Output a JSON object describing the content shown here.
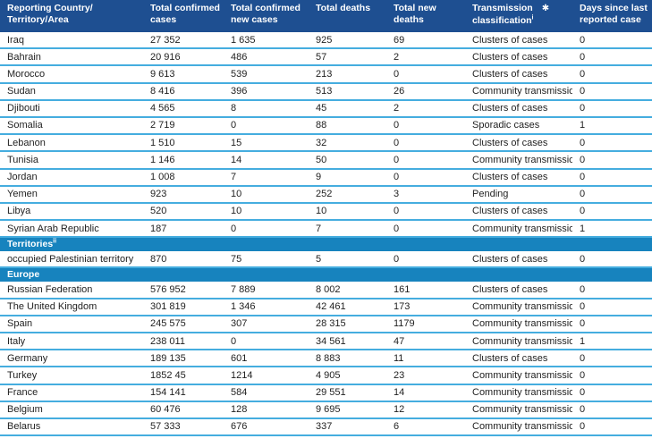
{
  "header": {
    "col_country": "Reporting Country/ Territory/Area",
    "col_confirmed_line1": "Total confirmed",
    "col_confirmed_line2": "cases",
    "col_new_cases_line1": "Total confirmed",
    "col_new_cases_line2": "new cases",
    "col_deaths": "Total deaths",
    "col_new_deaths": "Total new deaths",
    "col_transmission_line1": "Transmission",
    "col_transmission_star": "✱",
    "col_transmission_line2": "classification",
    "col_transmission_sup": "i",
    "col_days_line1": "Days since last",
    "col_days_line2": "reported case"
  },
  "colors": {
    "header_bg": "#1E4F91",
    "section_bg": "#1783BE",
    "row_border": "#45ADDF",
    "header_text": "#ffffff",
    "body_text": "#1f1f1f"
  },
  "table": {
    "rows": [
      {
        "type": "data",
        "cells": [
          "Iraq",
          "27 352",
          "1 635",
          "925",
          "69",
          "Clusters of cases",
          "0"
        ]
      },
      {
        "type": "data",
        "cells": [
          "Bahrain",
          "20 916",
          "486",
          "57",
          "2",
          "Clusters of cases",
          "0"
        ]
      },
      {
        "type": "data",
        "cells": [
          "Morocco",
          "9 613",
          "539",
          "213",
          "0",
          "Clusters of cases",
          "0"
        ]
      },
      {
        "type": "data",
        "cells": [
          "Sudan",
          "8 416",
          "396",
          "513",
          "26",
          "Community transmission",
          "0"
        ]
      },
      {
        "type": "data",
        "cells": [
          "Djibouti",
          "4 565",
          "8",
          "45",
          "2",
          "Clusters of cases",
          "0"
        ]
      },
      {
        "type": "data",
        "cells": [
          "Somalia",
          "2 719",
          "0",
          "88",
          "0",
          "Sporadic cases",
          "1"
        ]
      },
      {
        "type": "data",
        "cells": [
          "Lebanon",
          "1 510",
          "15",
          "32",
          "0",
          "Clusters of cases",
          "0"
        ]
      },
      {
        "type": "data",
        "cells": [
          "Tunisia",
          "1 146",
          "14",
          "50",
          "0",
          "Community transmission",
          "0"
        ]
      },
      {
        "type": "data",
        "cells": [
          "Jordan",
          "1 008",
          "7",
          "9",
          "0",
          "Clusters of cases",
          "0"
        ]
      },
      {
        "type": "data",
        "cells": [
          "Yemen",
          "923",
          "10",
          "252",
          "3",
          "Pending",
          "0"
        ]
      },
      {
        "type": "data",
        "cells": [
          "Libya",
          "520",
          "10",
          "10",
          "0",
          "Clusters of cases",
          "0"
        ]
      },
      {
        "type": "data",
        "cells": [
          "Syrian Arab Republic",
          "187",
          "0",
          "7",
          "0",
          "Community transmission",
          "1"
        ]
      },
      {
        "type": "section",
        "label": "Territories",
        "sup": "ii"
      },
      {
        "type": "data",
        "cells": [
          "occupied Palestinian territory",
          "870",
          "75",
          "5",
          "0",
          "Clusters of cases",
          "0"
        ]
      },
      {
        "type": "section",
        "label": "Europe",
        "sup": ""
      },
      {
        "type": "data",
        "cells": [
          "Russian Federation",
          "576 952",
          "7 889",
          "8 002",
          "161",
          "Clusters of cases",
          "0"
        ]
      },
      {
        "type": "data",
        "cells": [
          "The United Kingdom",
          "301 819",
          "1 346",
          "42 461",
          "173",
          "Community transmission",
          "0"
        ]
      },
      {
        "type": "data",
        "cells": [
          "Spain",
          "245 575",
          "307",
          "28 315",
          "1179",
          "Community transmission",
          "0"
        ]
      },
      {
        "type": "data",
        "cells": [
          "Italy",
          "238 011",
          "0",
          "34 561",
          "47",
          "Community transmission",
          "1"
        ]
      },
      {
        "type": "data",
        "cells": [
          "Germany",
          "189 135",
          "601",
          "8 883",
          "11",
          "Clusters of cases",
          "0"
        ]
      },
      {
        "type": "data",
        "cells": [
          "Turkey",
          "1852 45",
          "1214",
          "4 905",
          "23",
          "Community transmission",
          "0"
        ]
      },
      {
        "type": "data",
        "cells": [
          "France",
          "154 141",
          "584",
          "29 551",
          "14",
          "Community transmission",
          "0"
        ]
      },
      {
        "type": "data",
        "cells": [
          "Belgium",
          "60 476",
          "128",
          "9 695",
          "12",
          "Community transmission",
          "0"
        ]
      },
      {
        "type": "data",
        "cells": [
          "Belarus",
          "57 333",
          "676",
          "337",
          "6",
          "Community transmission",
          "0"
        ]
      }
    ]
  }
}
